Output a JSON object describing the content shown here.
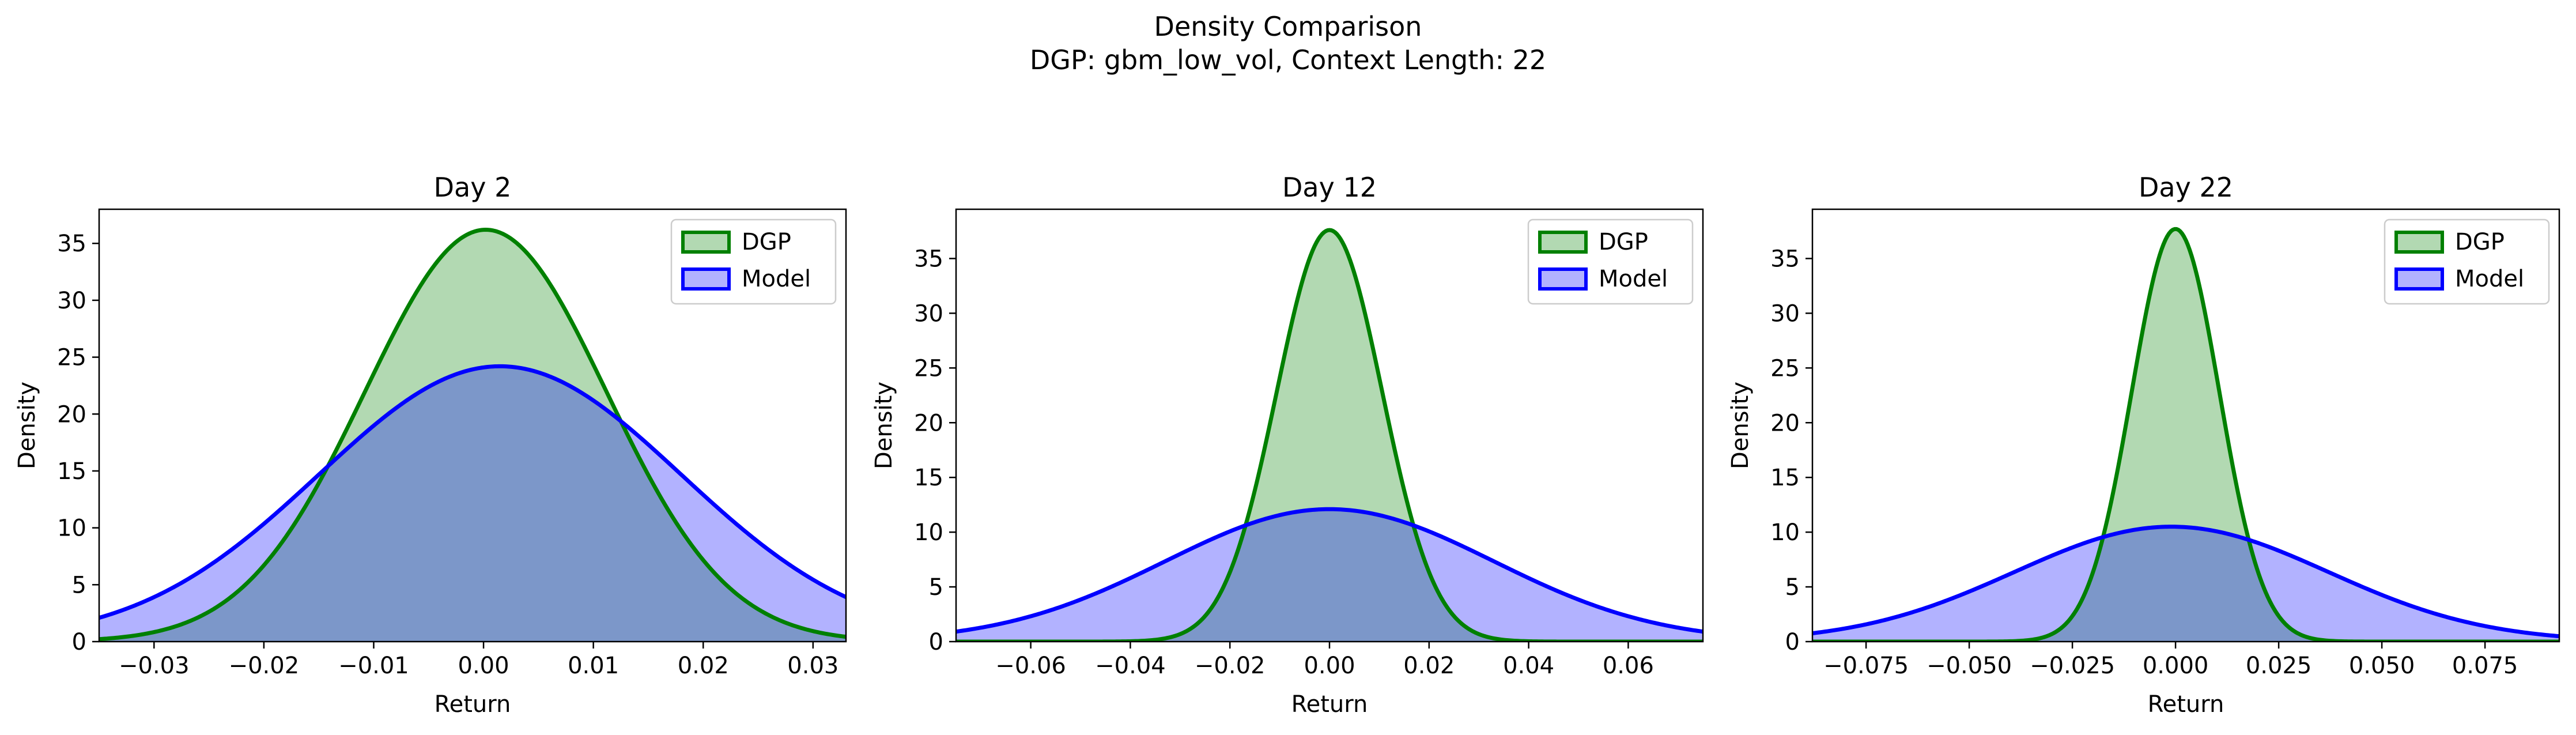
{
  "figure": {
    "title_line1": "Density Comparison",
    "title_line2": "DGP: gbm_low_vol, Context Length: 22"
  },
  "colors": {
    "dgp_line": "#008000",
    "dgp_fill": "#008000",
    "model_line": "#0000ff",
    "model_fill": "#0000ff"
  },
  "chart_data": [
    {
      "type": "area",
      "title": "Day 2",
      "xlabel": "Return",
      "ylabel": "Density",
      "xlim": [
        -0.035,
        0.033
      ],
      "ylim": [
        0,
        38
      ],
      "xticks": [
        -0.03,
        -0.02,
        -0.01,
        0.0,
        0.01,
        0.02,
        0.03
      ],
      "xtick_labels": [
        "−0.03",
        "−0.02",
        "−0.01",
        "0.00",
        "0.01",
        "0.02",
        "0.03"
      ],
      "yticks": [
        0,
        5,
        10,
        15,
        20,
        25,
        30,
        35
      ],
      "ytick_labels": [
        "0",
        "5",
        "10",
        "15",
        "20",
        "25",
        "30",
        "35"
      ],
      "legend_position": "top-right",
      "series": [
        {
          "name": "DGP",
          "distribution": "normal",
          "mean": 0.0002,
          "sd": 0.011,
          "peak": 36.2
        },
        {
          "name": "Model",
          "distribution": "normal",
          "mean": 0.0015,
          "sd": 0.0165,
          "peak": 24.2
        }
      ]
    },
    {
      "type": "area",
      "title": "Day 12",
      "xlabel": "Return",
      "ylabel": "Density",
      "xlim": [
        -0.075,
        0.075
      ],
      "ylim": [
        0,
        39.5
      ],
      "xticks": [
        -0.06,
        -0.04,
        -0.02,
        0.0,
        0.02,
        0.04,
        0.06
      ],
      "xtick_labels": [
        "−0.06",
        "−0.04",
        "−0.02",
        "0.00",
        "0.02",
        "0.04",
        "0.06"
      ],
      "yticks": [
        0,
        5,
        10,
        15,
        20,
        25,
        30,
        35
      ],
      "ytick_labels": [
        "0",
        "5",
        "10",
        "15",
        "20",
        "25",
        "30",
        "35"
      ],
      "legend_position": "top-right",
      "series": [
        {
          "name": "DGP",
          "distribution": "normal",
          "mean": 0.0,
          "sd": 0.0106,
          "peak": 37.6
        },
        {
          "name": "Model",
          "distribution": "normal",
          "mean": 0.0,
          "sd": 0.033,
          "peak": 12.1
        }
      ]
    },
    {
      "type": "area",
      "title": "Day 22",
      "xlabel": "Return",
      "ylabel": "Density",
      "xlim": [
        -0.088,
        0.093
      ],
      "ylim": [
        0,
        39.5
      ],
      "xticks": [
        -0.075,
        -0.05,
        -0.025,
        0.0,
        0.025,
        0.05,
        0.075
      ],
      "xtick_labels": [
        "−0.075",
        "−0.050",
        "−0.025",
        "0.000",
        "0.025",
        "0.050",
        "0.075"
      ],
      "yticks": [
        0,
        5,
        10,
        15,
        20,
        25,
        30,
        35
      ],
      "ytick_labels": [
        "0",
        "5",
        "10",
        "15",
        "20",
        "25",
        "30",
        "35"
      ],
      "legend_position": "top-right",
      "series": [
        {
          "name": "DGP",
          "distribution": "normal",
          "mean": 0.0,
          "sd": 0.0106,
          "peak": 37.7
        },
        {
          "name": "Model",
          "distribution": "normal",
          "mean": -0.001,
          "sd": 0.038,
          "peak": 10.5
        }
      ]
    }
  ]
}
